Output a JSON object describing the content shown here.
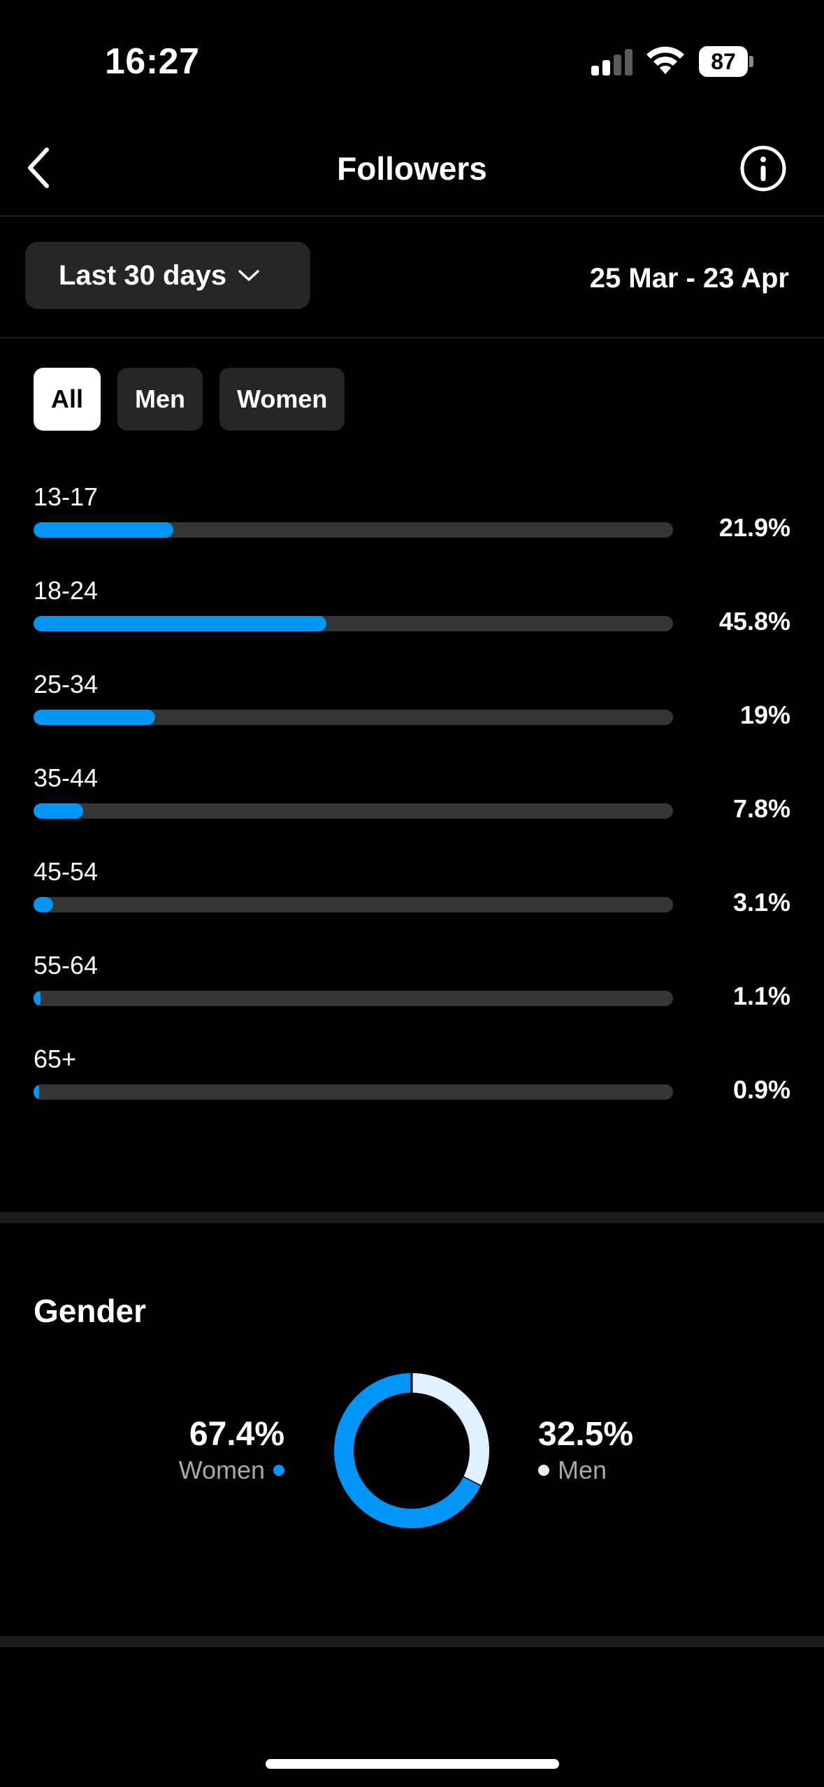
{
  "status_bar": {
    "time": "16:27",
    "battery": "87",
    "icons": [
      "signal-icon",
      "wifi-icon",
      "battery-icon"
    ]
  },
  "header": {
    "title": "Followers",
    "back_icon": "chevron-left-icon",
    "info_icon": "info-icon"
  },
  "date_filter": {
    "label": "Last 30 days",
    "range": "25 Mar - 23 Apr"
  },
  "filters": [
    {
      "label": "All",
      "active": true
    },
    {
      "label": "Men",
      "active": false
    },
    {
      "label": "Women",
      "active": false
    }
  ],
  "chart_data": [
    {
      "type": "bar",
      "orientation": "horizontal",
      "categories": [
        "13-17",
        "18-24",
        "25-34",
        "35-44",
        "45-54",
        "55-64",
        "65+"
      ],
      "values": [
        21.9,
        45.8,
        19,
        7.8,
        3.1,
        1.1,
        0.9
      ],
      "value_labels": [
        "21.9%",
        "45.8%",
        "19%",
        "7.8%",
        "3.1%",
        "1.1%",
        "0.9%"
      ],
      "xlim": [
        0,
        100
      ],
      "grid": false
    },
    {
      "type": "pie",
      "title": "Gender",
      "categories": [
        "Women",
        "Men"
      ],
      "values": [
        67.4,
        32.5
      ],
      "value_labels": [
        "67.4%",
        "32.5%"
      ],
      "colors": [
        "#0095f6",
        "#e0f1ff"
      ]
    }
  ],
  "colors": {
    "accent": "#0095f6",
    "track": "#363636",
    "men": "#e0f1ff",
    "chip_bg": "#262626"
  }
}
